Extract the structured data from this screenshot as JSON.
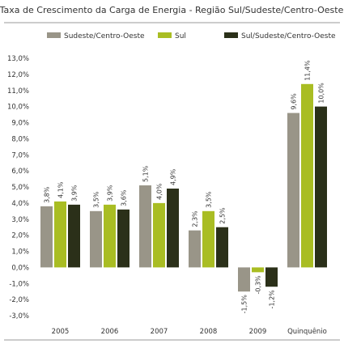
{
  "chart_data": {
    "type": "bar",
    "title": "Taxa de Crescimento da Carga de Energia - Região Sul/Sudeste/Centro-Oeste",
    "categories": [
      "2005",
      "2006",
      "2007",
      "2008",
      "2009",
      "Quinquênio"
    ],
    "ylim": [
      -3.0,
      13.0
    ],
    "yticks": [
      "13,0%",
      "12,0%",
      "11,0%",
      "10,0%",
      "9,0%",
      "8,0%",
      "7,0%",
      "6,0%",
      "5,0%",
      "4,0%",
      "3,0%",
      "2,0%",
      "1,0%",
      "0,0%",
      "-1,0%",
      "-2,0%",
      "-3,0%"
    ],
    "ytick_values": [
      13,
      12,
      11,
      10,
      9,
      8,
      7,
      6,
      5,
      4,
      3,
      2,
      1,
      0,
      -1,
      -2,
      -3
    ],
    "legend_position": "top",
    "grid": false,
    "series": [
      {
        "name": "Sudeste/Centro-Oeste",
        "color": "#999588",
        "values": [
          3.8,
          3.5,
          5.1,
          2.3,
          -1.5,
          9.6
        ],
        "labels": [
          "3,8%",
          "3,5%",
          "5,1%",
          "2,3%",
          "-1,5%",
          "9,6%"
        ]
      },
      {
        "name": "Sul",
        "color": "#a9bd23",
        "values": [
          4.1,
          3.9,
          4.0,
          3.5,
          -0.3,
          11.4
        ],
        "labels": [
          "4,1%",
          "3,9%",
          "4,0%",
          "3,5%",
          "-0,3%",
          "11,4%"
        ]
      },
      {
        "name": "Sul/Sudeste/Centro-Oeste",
        "color": "#2b3019",
        "values": [
          3.9,
          3.6,
          4.9,
          2.5,
          -1.2,
          10.0
        ],
        "labels": [
          "3,9%",
          "3,6%",
          "4,9%",
          "2,5%",
          "-1,2%",
          "10,0%"
        ]
      }
    ]
  }
}
